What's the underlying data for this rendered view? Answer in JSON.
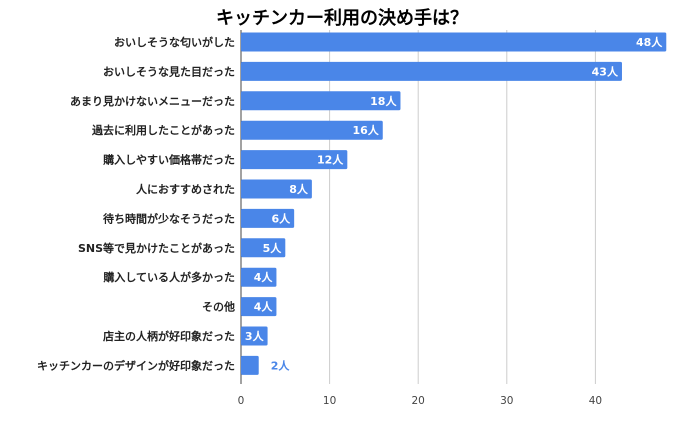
{
  "chart_data": {
    "type": "bar",
    "orientation": "horizontal",
    "title": "キッチンカー利用の決め手は？",
    "categories": [
      "おいしそうな匂いがした",
      "おいしそうな見た目だった",
      "あまり見かけないメニューだった",
      "過去に利用したことがあった",
      "購入しやすい価格帯だった",
      "人におすすめされた",
      "待ち時間が少なそうだった",
      "SNS等で見かけたことがあった",
      "購入している人が多かった",
      "その他",
      "店主の人柄が好印象だった",
      "キッチンカーのデザインが好印象だった"
    ],
    "values": [
      48,
      43,
      18,
      16,
      12,
      8,
      6,
      5,
      4,
      4,
      3,
      2
    ],
    "data_labels": [
      "48人",
      "43人",
      "18人",
      "16人",
      "12人",
      "8人",
      "6人",
      "5人",
      "4人",
      "4人",
      "3人",
      "2人"
    ],
    "xlim": [
      0,
      50
    ],
    "xticks": [
      0,
      10,
      20,
      30,
      40
    ],
    "xlabel": "",
    "ylabel": "",
    "grid": true,
    "legend": "none",
    "colors": {
      "bar": "#4a86e8",
      "label_inside": "#ffffff",
      "label_outside": "#4a86e8",
      "grid": "#cccccc"
    }
  }
}
